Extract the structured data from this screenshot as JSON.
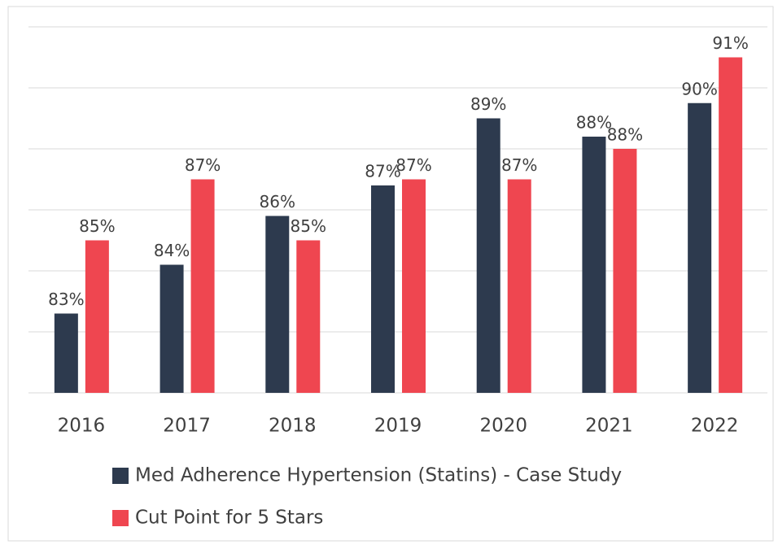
{
  "chart_data": {
    "type": "bar",
    "categories": [
      "2016",
      "2017",
      "2018",
      "2019",
      "2020",
      "2021",
      "2022"
    ],
    "series": [
      {
        "name": "Med Adherence Hypertension (Statins) - Case Study",
        "color": "#2d3a4e",
        "values": [
          82.6,
          84.2,
          85.8,
          86.8,
          89.0,
          88.4,
          89.5
        ],
        "value_labels": [
          "83%",
          "84%",
          "86%",
          "87%",
          "89%",
          "88%",
          "90%"
        ]
      },
      {
        "name": "Cut Point for 5 Stars",
        "color": "#ef4650",
        "values": [
          85,
          87,
          85,
          87,
          87,
          88,
          91
        ],
        "value_labels": [
          "85%",
          "87%",
          "85%",
          "87%",
          "87%",
          "88%",
          "91%"
        ]
      }
    ],
    "ylim": [
      80,
      92
    ],
    "yticks": [
      80,
      82,
      84,
      86,
      88,
      90,
      92
    ],
    "grid": true
  }
}
